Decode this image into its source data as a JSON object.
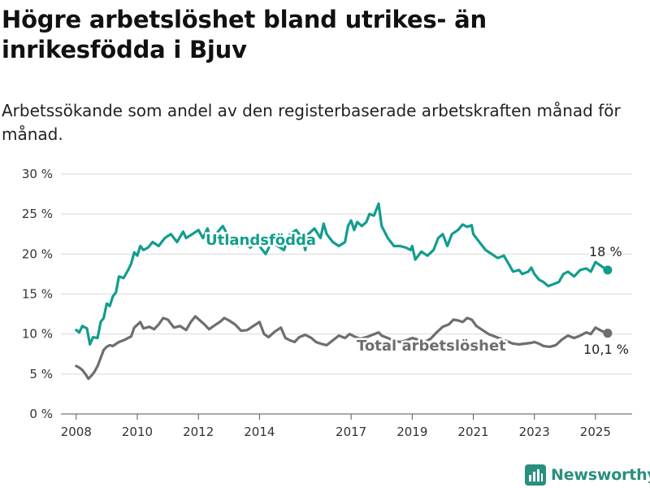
{
  "chart_data": {
    "type": "line",
    "title": "Högre arbetslöshet bland utrikes- än inrikesfödda i Bjuv",
    "subtitle": "Arbetssökande som andel av den registerbaserade arbetskraften månad för månad.",
    "y_ticks": [
      "0 %",
      "5 %",
      "10 %",
      "15 %",
      "20 %",
      "25 %",
      "30 %"
    ],
    "ylim": [
      0,
      30
    ],
    "x_ticks": [
      "2008",
      "2010",
      "2012",
      "2014",
      "2017",
      "2019",
      "2021",
      "2023",
      "2025"
    ],
    "x_tick_values": [
      2008,
      2010,
      2012,
      2014,
      2017,
      2019,
      2021,
      2023,
      2025
    ],
    "xlim": [
      2007.5,
      2026.2
    ],
    "grid": true,
    "series": [
      {
        "name": "Utlandsfödda",
        "color": "#119d8e",
        "end_label": "18 %",
        "points": [
          [
            2008.0,
            10.5
          ],
          [
            2008.1,
            10.2
          ],
          [
            2008.2,
            11.0
          ],
          [
            2008.35,
            10.7
          ],
          [
            2008.45,
            8.7
          ],
          [
            2008.55,
            9.6
          ],
          [
            2008.7,
            9.5
          ],
          [
            2008.8,
            11.5
          ],
          [
            2008.9,
            12.0
          ],
          [
            2009.0,
            13.8
          ],
          [
            2009.1,
            13.5
          ],
          [
            2009.2,
            14.7
          ],
          [
            2009.3,
            15.2
          ],
          [
            2009.4,
            17.2
          ],
          [
            2009.55,
            17.0
          ],
          [
            2009.7,
            18.0
          ],
          [
            2009.8,
            18.8
          ],
          [
            2009.9,
            20.2
          ],
          [
            2010.0,
            19.8
          ],
          [
            2010.1,
            21.0
          ],
          [
            2010.2,
            20.5
          ],
          [
            2010.35,
            20.8
          ],
          [
            2010.5,
            21.5
          ],
          [
            2010.7,
            21.0
          ],
          [
            2010.9,
            22.0
          ],
          [
            2011.1,
            22.5
          ],
          [
            2011.3,
            21.5
          ],
          [
            2011.5,
            22.8
          ],
          [
            2011.6,
            22.0
          ],
          [
            2011.8,
            22.5
          ],
          [
            2012.0,
            23.0
          ],
          [
            2012.15,
            22.0
          ],
          [
            2012.3,
            23.2
          ],
          [
            2012.4,
            21.8
          ],
          [
            2012.6,
            22.6
          ],
          [
            2012.8,
            23.5
          ],
          [
            2012.95,
            22.4
          ],
          [
            2013.1,
            21.5
          ],
          [
            2013.3,
            21.0
          ],
          [
            2013.5,
            21.5
          ],
          [
            2013.7,
            20.8
          ],
          [
            2013.9,
            21.5
          ],
          [
            2014.0,
            21.0
          ],
          [
            2014.2,
            20.0
          ],
          [
            2014.4,
            21.5
          ],
          [
            2014.6,
            21.0
          ],
          [
            2014.8,
            20.5
          ],
          [
            2015.0,
            22.5
          ],
          [
            2015.2,
            23.0
          ],
          [
            2015.4,
            22.0
          ],
          [
            2015.5,
            20.5
          ],
          [
            2015.6,
            22.5
          ],
          [
            2015.8,
            23.2
          ],
          [
            2016.0,
            22.0
          ],
          [
            2016.1,
            23.8
          ],
          [
            2016.2,
            22.5
          ],
          [
            2016.4,
            21.5
          ],
          [
            2016.6,
            21.0
          ],
          [
            2016.8,
            21.5
          ],
          [
            2016.9,
            23.5
          ],
          [
            2017.0,
            24.2
          ],
          [
            2017.1,
            23.0
          ],
          [
            2017.2,
            24.0
          ],
          [
            2017.35,
            23.5
          ],
          [
            2017.5,
            24.0
          ],
          [
            2017.6,
            25.0
          ],
          [
            2017.75,
            24.8
          ],
          [
            2017.9,
            26.3
          ],
          [
            2018.0,
            23.5
          ],
          [
            2018.2,
            22.0
          ],
          [
            2018.4,
            21.0
          ],
          [
            2018.6,
            21.0
          ],
          [
            2018.8,
            20.8
          ],
          [
            2018.95,
            20.5
          ],
          [
            2019.0,
            21.0
          ],
          [
            2019.1,
            19.3
          ],
          [
            2019.3,
            20.3
          ],
          [
            2019.5,
            19.8
          ],
          [
            2019.7,
            20.5
          ],
          [
            2019.85,
            22.0
          ],
          [
            2020.0,
            22.5
          ],
          [
            2020.15,
            21.0
          ],
          [
            2020.3,
            22.5
          ],
          [
            2020.5,
            23.0
          ],
          [
            2020.65,
            23.7
          ],
          [
            2020.8,
            23.4
          ],
          [
            2020.95,
            23.6
          ],
          [
            2021.0,
            22.5
          ],
          [
            2021.2,
            21.5
          ],
          [
            2021.4,
            20.5
          ],
          [
            2021.6,
            20.0
          ],
          [
            2021.8,
            19.5
          ],
          [
            2022.0,
            19.8
          ],
          [
            2022.2,
            18.5
          ],
          [
            2022.3,
            17.8
          ],
          [
            2022.5,
            18.0
          ],
          [
            2022.6,
            17.5
          ],
          [
            2022.8,
            17.8
          ],
          [
            2022.9,
            18.3
          ],
          [
            2023.0,
            17.5
          ],
          [
            2023.15,
            16.8
          ],
          [
            2023.3,
            16.5
          ],
          [
            2023.45,
            16.0
          ],
          [
            2023.6,
            16.2
          ],
          [
            2023.8,
            16.5
          ],
          [
            2023.95,
            17.5
          ],
          [
            2024.1,
            17.8
          ],
          [
            2024.3,
            17.2
          ],
          [
            2024.5,
            18.0
          ],
          [
            2024.7,
            18.2
          ],
          [
            2024.85,
            17.8
          ],
          [
            2025.0,
            19.0
          ],
          [
            2025.15,
            18.6
          ],
          [
            2025.3,
            18.2
          ],
          [
            2025.4,
            18.0
          ]
        ]
      },
      {
        "name": "Total arbetslöshet",
        "color": "#6e6e70",
        "end_label": "10,1 %",
        "points": [
          [
            2008.0,
            6.0
          ],
          [
            2008.1,
            5.8
          ],
          [
            2008.2,
            5.5
          ],
          [
            2008.3,
            5.0
          ],
          [
            2008.4,
            4.4
          ],
          [
            2008.5,
            4.8
          ],
          [
            2008.6,
            5.3
          ],
          [
            2008.7,
            6.0
          ],
          [
            2008.8,
            7.0
          ],
          [
            2008.9,
            8.0
          ],
          [
            2009.0,
            8.4
          ],
          [
            2009.1,
            8.6
          ],
          [
            2009.2,
            8.5
          ],
          [
            2009.4,
            9.0
          ],
          [
            2009.6,
            9.3
          ],
          [
            2009.8,
            9.7
          ],
          [
            2009.9,
            10.8
          ],
          [
            2010.1,
            11.5
          ],
          [
            2010.2,
            10.7
          ],
          [
            2010.4,
            10.9
          ],
          [
            2010.55,
            10.6
          ],
          [
            2010.7,
            11.2
          ],
          [
            2010.85,
            12.0
          ],
          [
            2011.0,
            11.8
          ],
          [
            2011.2,
            10.8
          ],
          [
            2011.4,
            11.0
          ],
          [
            2011.6,
            10.5
          ],
          [
            2011.75,
            11.5
          ],
          [
            2011.9,
            12.2
          ],
          [
            2012.05,
            11.7
          ],
          [
            2012.2,
            11.2
          ],
          [
            2012.35,
            10.6
          ],
          [
            2012.5,
            11.0
          ],
          [
            2012.7,
            11.5
          ],
          [
            2012.85,
            12.0
          ],
          [
            2013.0,
            11.7
          ],
          [
            2013.2,
            11.2
          ],
          [
            2013.4,
            10.4
          ],
          [
            2013.6,
            10.5
          ],
          [
            2013.8,
            11.0
          ],
          [
            2014.0,
            11.5
          ],
          [
            2014.15,
            10.0
          ],
          [
            2014.3,
            9.6
          ],
          [
            2014.5,
            10.3
          ],
          [
            2014.7,
            10.8
          ],
          [
            2014.85,
            9.5
          ],
          [
            2015.0,
            9.2
          ],
          [
            2015.15,
            9.0
          ],
          [
            2015.3,
            9.6
          ],
          [
            2015.5,
            9.9
          ],
          [
            2015.7,
            9.5
          ],
          [
            2015.85,
            9.0
          ],
          [
            2016.0,
            8.8
          ],
          [
            2016.2,
            8.6
          ],
          [
            2016.4,
            9.2
          ],
          [
            2016.6,
            9.8
          ],
          [
            2016.8,
            9.5
          ],
          [
            2016.95,
            10.0
          ],
          [
            2017.1,
            9.7
          ],
          [
            2017.3,
            9.4
          ],
          [
            2017.5,
            9.6
          ],
          [
            2017.7,
            9.9
          ],
          [
            2017.9,
            10.2
          ],
          [
            2018.0,
            9.8
          ],
          [
            2018.2,
            9.5
          ],
          [
            2018.4,
            9.2
          ],
          [
            2018.6,
            9.0
          ],
          [
            2018.8,
            9.2
          ],
          [
            2019.0,
            9.5
          ],
          [
            2019.2,
            9.3
          ],
          [
            2019.4,
            9.0
          ],
          [
            2019.6,
            9.4
          ],
          [
            2019.8,
            10.2
          ],
          [
            2020.0,
            10.9
          ],
          [
            2020.2,
            11.2
          ],
          [
            2020.35,
            11.8
          ],
          [
            2020.5,
            11.7
          ],
          [
            2020.65,
            11.5
          ],
          [
            2020.8,
            12.0
          ],
          [
            2020.95,
            11.8
          ],
          [
            2021.1,
            11.0
          ],
          [
            2021.3,
            10.5
          ],
          [
            2021.5,
            10.0
          ],
          [
            2021.7,
            9.7
          ],
          [
            2021.9,
            9.4
          ],
          [
            2022.1,
            9.1
          ],
          [
            2022.3,
            8.8
          ],
          [
            2022.5,
            8.7
          ],
          [
            2022.7,
            8.8
          ],
          [
            2022.9,
            8.9
          ],
          [
            2023.0,
            9.0
          ],
          [
            2023.15,
            8.8
          ],
          [
            2023.3,
            8.5
          ],
          [
            2023.5,
            8.4
          ],
          [
            2023.7,
            8.6
          ],
          [
            2023.9,
            9.3
          ],
          [
            2024.1,
            9.8
          ],
          [
            2024.3,
            9.5
          ],
          [
            2024.5,
            9.8
          ],
          [
            2024.7,
            10.2
          ],
          [
            2024.85,
            10.0
          ],
          [
            2025.0,
            10.8
          ],
          [
            2025.15,
            10.5
          ],
          [
            2025.3,
            10.2
          ],
          [
            2025.4,
            10.1
          ]
        ]
      }
    ]
  },
  "brand": {
    "name": "Newsworthy",
    "color": "#2a8f7e",
    "icon": "bar-chart-logo-icon"
  }
}
